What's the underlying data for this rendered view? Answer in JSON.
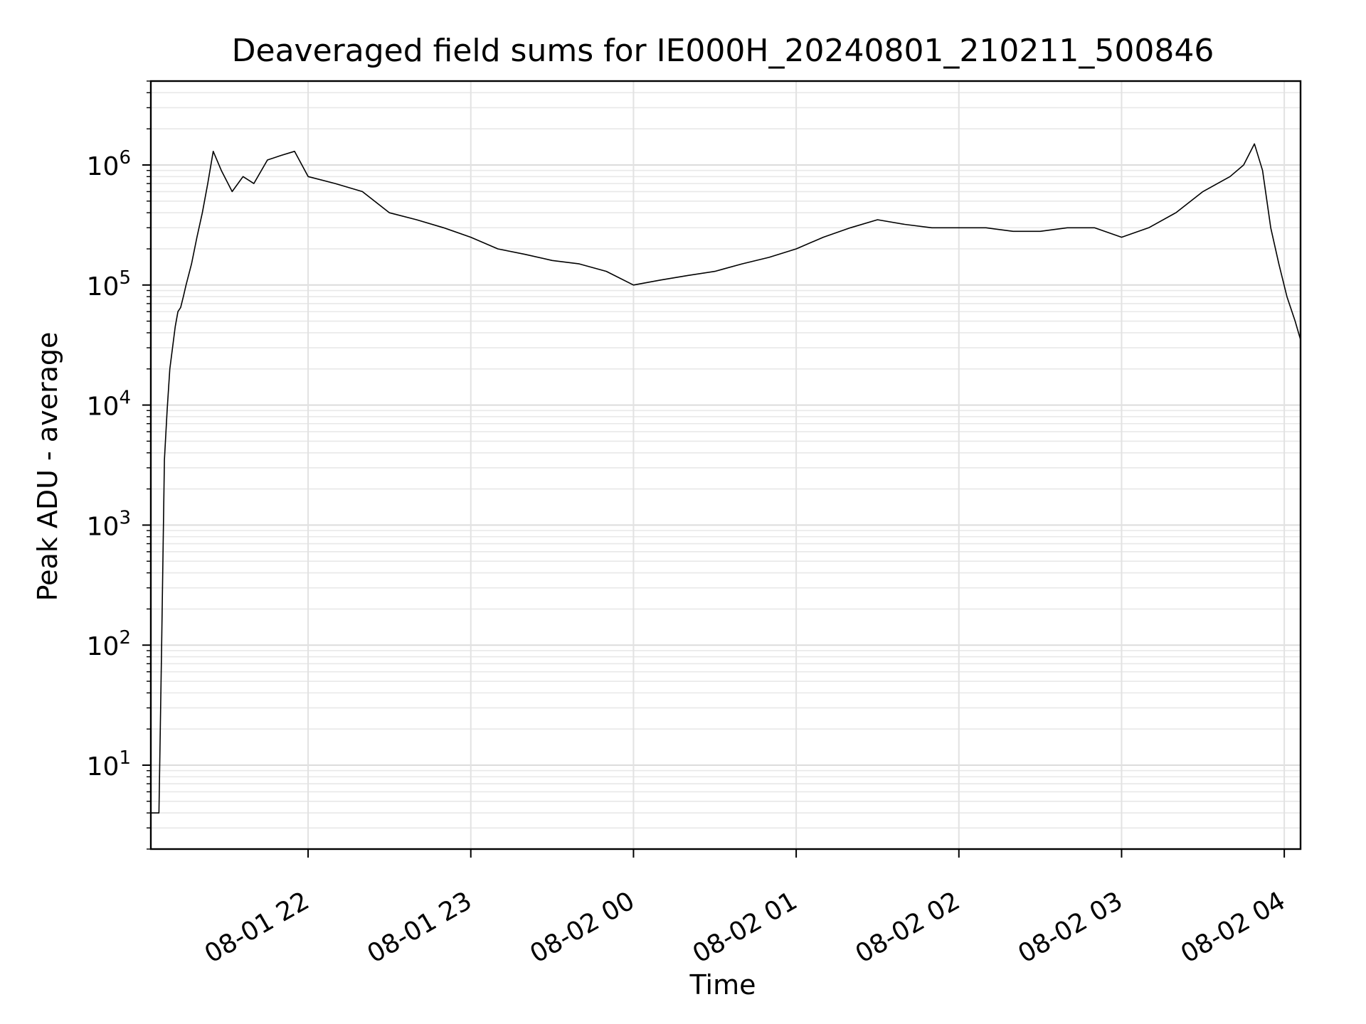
{
  "chart_data": {
    "type": "line",
    "title": "Deaveraged field sums for IE000H_20240801_210211_500846",
    "xlabel": "Time",
    "ylabel": "Peak ADU - average",
    "yscale": "log",
    "ylim": [
      2,
      5000000
    ],
    "xlim": [
      "2024-08-01 21:02",
      "2024-08-02 04:06"
    ],
    "grid": true,
    "x_ticks": [
      {
        "t": "2024-08-01 22:00",
        "label": "08-01 22"
      },
      {
        "t": "2024-08-01 23:00",
        "label": "08-01 23"
      },
      {
        "t": "2024-08-02 00:00",
        "label": "08-02 00"
      },
      {
        "t": "2024-08-02 01:00",
        "label": "08-02 01"
      },
      {
        "t": "2024-08-02 02:00",
        "label": "08-02 02"
      },
      {
        "t": "2024-08-02 03:00",
        "label": "08-02 03"
      },
      {
        "t": "2024-08-02 04:00",
        "label": "08-02 04"
      }
    ],
    "y_ticks": [
      {
        "value": 10,
        "base": "10",
        "exp": "1"
      },
      {
        "value": 100,
        "base": "10",
        "exp": "2"
      },
      {
        "value": 1000,
        "base": "10",
        "exp": "3"
      },
      {
        "value": 10000,
        "base": "10",
        "exp": "4"
      },
      {
        "value": 100000,
        "base": "10",
        "exp": "5"
      },
      {
        "value": 1000000,
        "base": "10",
        "exp": "6"
      }
    ],
    "series": [
      {
        "color": "#000000",
        "points": [
          [
            "2024-08-01 21:02",
            4
          ],
          [
            "2024-08-01 21:04",
            4
          ],
          [
            "2024-08-01 21:05",
            4
          ],
          [
            "2024-08-01 21:06",
            100
          ],
          [
            "2024-08-01 21:07",
            3500
          ],
          [
            "2024-08-01 21:08",
            9000
          ],
          [
            "2024-08-01 21:09",
            20000
          ],
          [
            "2024-08-01 21:10",
            30000
          ],
          [
            "2024-08-01 21:11",
            45000
          ],
          [
            "2024-08-01 21:12",
            60000
          ],
          [
            "2024-08-01 21:13",
            65000
          ],
          [
            "2024-08-01 21:14",
            80000
          ],
          [
            "2024-08-01 21:15",
            100000
          ],
          [
            "2024-08-01 21:17",
            150000
          ],
          [
            "2024-08-01 21:19",
            250000
          ],
          [
            "2024-08-01 21:21",
            400000
          ],
          [
            "2024-08-01 21:23",
            700000
          ],
          [
            "2024-08-01 21:25",
            1300000
          ],
          [
            "2024-08-01 21:28",
            900000
          ],
          [
            "2024-08-01 21:32",
            600000
          ],
          [
            "2024-08-01 21:36",
            800000
          ],
          [
            "2024-08-01 21:40",
            700000
          ],
          [
            "2024-08-01 21:45",
            1100000
          ],
          [
            "2024-08-01 21:50",
            1200000
          ],
          [
            "2024-08-01 21:55",
            1300000
          ],
          [
            "2024-08-01 22:00",
            800000
          ],
          [
            "2024-08-01 22:10",
            700000
          ],
          [
            "2024-08-01 22:20",
            600000
          ],
          [
            "2024-08-01 22:30",
            400000
          ],
          [
            "2024-08-01 22:40",
            350000
          ],
          [
            "2024-08-01 22:50",
            300000
          ],
          [
            "2024-08-01 23:00",
            250000
          ],
          [
            "2024-08-01 23:10",
            200000
          ],
          [
            "2024-08-01 23:20",
            180000
          ],
          [
            "2024-08-01 23:30",
            160000
          ],
          [
            "2024-08-01 23:40",
            150000
          ],
          [
            "2024-08-01 23:50",
            130000
          ],
          [
            "2024-08-02 00:00",
            100000
          ],
          [
            "2024-08-02 00:10",
            110000
          ],
          [
            "2024-08-02 00:20",
            120000
          ],
          [
            "2024-08-02 00:30",
            130000
          ],
          [
            "2024-08-02 00:40",
            150000
          ],
          [
            "2024-08-02 00:50",
            170000
          ],
          [
            "2024-08-02 01:00",
            200000
          ],
          [
            "2024-08-02 01:10",
            250000
          ],
          [
            "2024-08-02 01:20",
            300000
          ],
          [
            "2024-08-02 01:30",
            350000
          ],
          [
            "2024-08-02 01:40",
            320000
          ],
          [
            "2024-08-02 01:50",
            300000
          ],
          [
            "2024-08-02 02:00",
            300000
          ],
          [
            "2024-08-02 02:10",
            300000
          ],
          [
            "2024-08-02 02:20",
            280000
          ],
          [
            "2024-08-02 02:30",
            280000
          ],
          [
            "2024-08-02 02:40",
            300000
          ],
          [
            "2024-08-02 02:50",
            300000
          ],
          [
            "2024-08-02 03:00",
            250000
          ],
          [
            "2024-08-02 03:10",
            300000
          ],
          [
            "2024-08-02 03:20",
            400000
          ],
          [
            "2024-08-02 03:30",
            600000
          ],
          [
            "2024-08-02 03:40",
            800000
          ],
          [
            "2024-08-02 03:45",
            1000000
          ],
          [
            "2024-08-02 03:49",
            1500000
          ],
          [
            "2024-08-02 03:52",
            900000
          ],
          [
            "2024-08-02 03:55",
            300000
          ],
          [
            "2024-08-02 03:58",
            150000
          ],
          [
            "2024-08-02 04:01",
            80000
          ],
          [
            "2024-08-02 04:04",
            50000
          ],
          [
            "2024-08-02 04:06",
            35000
          ]
        ]
      }
    ]
  }
}
